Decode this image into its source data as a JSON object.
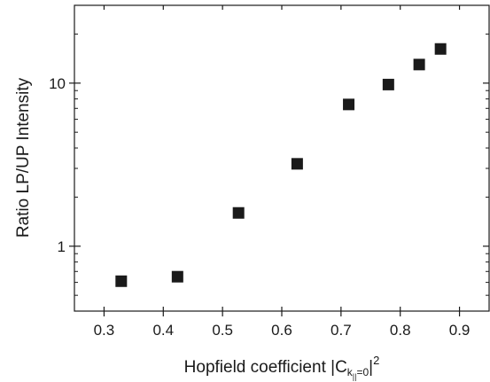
{
  "chart_data": {
    "type": "scatter",
    "title": "",
    "xlabel": "Hopfield coefficient |C",
    "xlabel_sub_main": "k",
    "xlabel_sub_sub": "||",
    "xlabel_sub_tail": "=0",
    "xlabel_close": "|",
    "xlabel_sup": "2",
    "ylabel": "Ratio LP/UP Intensity",
    "xlim": [
      0.25,
      0.95
    ],
    "ylim": [
      0.4,
      30
    ],
    "yscale": "log",
    "grid": false,
    "x_ticks": [
      {
        "value": 0.3,
        "label": "0.3"
      },
      {
        "value": 0.4,
        "label": "0.4"
      },
      {
        "value": 0.5,
        "label": "0.5"
      },
      {
        "value": 0.6,
        "label": "0.6"
      },
      {
        "value": 0.7,
        "label": "0.7"
      },
      {
        "value": 0.8,
        "label": "0.8"
      },
      {
        "value": 0.9,
        "label": "0.9"
      }
    ],
    "y_ticks": [
      {
        "value": 1,
        "label": "1"
      },
      {
        "value": 10,
        "label": "10"
      }
    ],
    "marker": {
      "shape": "square",
      "color": "#1a1a1a"
    },
    "series": [
      {
        "x": [
          0.329,
          0.424,
          0.527,
          0.626,
          0.713,
          0.78,
          0.832,
          0.868
        ],
        "y": [
          0.61,
          0.65,
          1.6,
          3.2,
          7.4,
          9.8,
          13.0,
          16.2
        ]
      }
    ]
  }
}
